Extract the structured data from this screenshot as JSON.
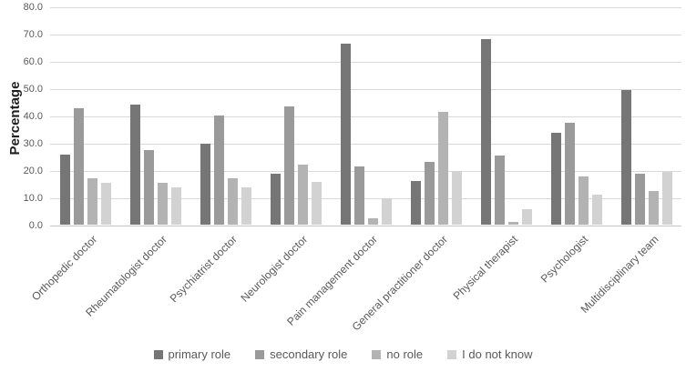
{
  "chart_data": {
    "type": "bar",
    "title": "",
    "ylabel": "Percentage",
    "xlabel": "",
    "ylim": [
      0,
      80
    ],
    "ytick_step": 10,
    "ytick_labels": [
      "80.0",
      "70.0",
      "60.0",
      "50.0",
      "40.0",
      "30.0",
      "20.0",
      "10.0",
      "0.0"
    ],
    "grid": true,
    "legend_position": "bottom",
    "categories": [
      "Orthopedic doctor",
      "Rheumatologist doctor",
      "Psychiatrist doctor",
      "Neurologist doctor",
      "Pain management doctor",
      "General practitioner doctor",
      "Physical therapist",
      "Psychologist",
      "Multidisciplinary team"
    ],
    "series": [
      {
        "name": "primary role",
        "color": "#767676",
        "values": [
          25.5,
          44.0,
          29.7,
          18.5,
          66.3,
          15.9,
          67.9,
          33.8,
          49.2
        ]
      },
      {
        "name": "secondary role",
        "color": "#9a9a9a",
        "values": [
          42.6,
          27.3,
          40.0,
          43.3,
          21.2,
          22.9,
          25.2,
          37.3,
          18.5
        ]
      },
      {
        "name": "no role",
        "color": "#b3b3b3",
        "values": [
          17.0,
          15.2,
          17.0,
          22.0,
          2.4,
          41.3,
          0.9,
          17.6,
          12.3
        ]
      },
      {
        "name": "I do not know",
        "color": "#d2d2d2",
        "values": [
          15.2,
          13.5,
          13.7,
          15.8,
          9.8,
          19.5,
          5.5,
          10.9,
          19.2
        ]
      }
    ],
    "style": {
      "gridline_color": "#d9d9d9",
      "baseline_color": "#c6c6c6",
      "tick_text_color": "#595959",
      "axis_title_color": "#1f1f1f",
      "xlabel_color": "#595959",
      "legend_text_color": "#595959",
      "background": "#ffffff"
    }
  }
}
